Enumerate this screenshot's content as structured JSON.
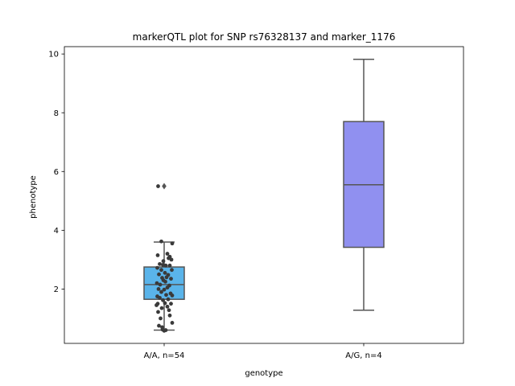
{
  "chart_data": {
    "type": "box",
    "title": "markerQTL plot for SNP rs76328137 and marker_1176",
    "xlabel": "genotype",
    "ylabel": "phenotype",
    "ylim": [
      0.15,
      10.25
    ],
    "yticks": [
      2,
      4,
      6,
      8,
      10
    ],
    "grid": false,
    "groups": [
      {
        "label": "A/A, n=54",
        "color": "#5ab4ea",
        "box": {
          "whisker_low": 0.6,
          "q1": 1.65,
          "median": 2.15,
          "q3": 2.75,
          "whisker_high": 3.6
        },
        "outliers": [
          5.5
        ],
        "points": [
          [
            -0.15,
            5.5
          ],
          [
            -0.07,
            3.62
          ],
          [
            0.2,
            3.55
          ],
          [
            0.14,
            3.1
          ],
          [
            0.08,
            3.2
          ],
          [
            -0.16,
            3.15
          ],
          [
            0.18,
            3.0
          ],
          [
            -0.02,
            2.95
          ],
          [
            0.11,
            3.05
          ],
          [
            -0.11,
            2.85
          ],
          [
            -0.03,
            2.82
          ],
          [
            0.04,
            2.8
          ],
          [
            -0.17,
            2.72
          ],
          [
            0.14,
            2.8
          ],
          [
            0.19,
            2.65
          ],
          [
            -0.07,
            2.65
          ],
          [
            0.02,
            2.55
          ],
          [
            -0.13,
            2.5
          ],
          [
            0.1,
            2.48
          ],
          [
            -0.05,
            2.38
          ],
          [
            0.06,
            2.4
          ],
          [
            0.17,
            2.35
          ],
          [
            -0.18,
            2.2
          ],
          [
            -0.02,
            2.3
          ],
          [
            0.03,
            2.25
          ],
          [
            -0.1,
            2.15
          ],
          [
            0.13,
            2.12
          ],
          [
            -0.14,
            2.0
          ],
          [
            0.08,
            2.05
          ],
          [
            0.0,
            1.98
          ],
          [
            -0.07,
            1.9
          ],
          [
            0.16,
            1.85
          ],
          [
            0.05,
            1.8
          ],
          [
            -0.17,
            1.75
          ],
          [
            0.2,
            1.78
          ],
          [
            -0.11,
            1.7
          ],
          [
            -0.03,
            1.62
          ],
          [
            0.1,
            1.65
          ],
          [
            0.17,
            1.5
          ],
          [
            -0.19,
            1.45
          ],
          [
            0.02,
            1.52
          ],
          [
            -0.15,
            1.22
          ],
          [
            -0.06,
            1.35
          ],
          [
            0.08,
            1.4
          ],
          [
            -0.16,
            1.5
          ],
          [
            0.14,
            1.1
          ],
          [
            -0.09,
            1.0
          ],
          [
            0.2,
            0.85
          ],
          [
            -0.13,
            0.75
          ],
          [
            -0.04,
            0.62
          ],
          [
            0.04,
            0.6
          ],
          [
            0.0,
            0.58
          ],
          [
            -0.05,
            0.7
          ],
          [
            0.12,
            1.28
          ]
        ]
      },
      {
        "label": "A/G, n=4",
        "color": "#9090f0",
        "box": {
          "whisker_low": 1.28,
          "q1": 3.42,
          "median": 5.55,
          "q3": 7.7,
          "whisker_high": 9.82
        },
        "outliers": [],
        "points": []
      }
    ]
  }
}
